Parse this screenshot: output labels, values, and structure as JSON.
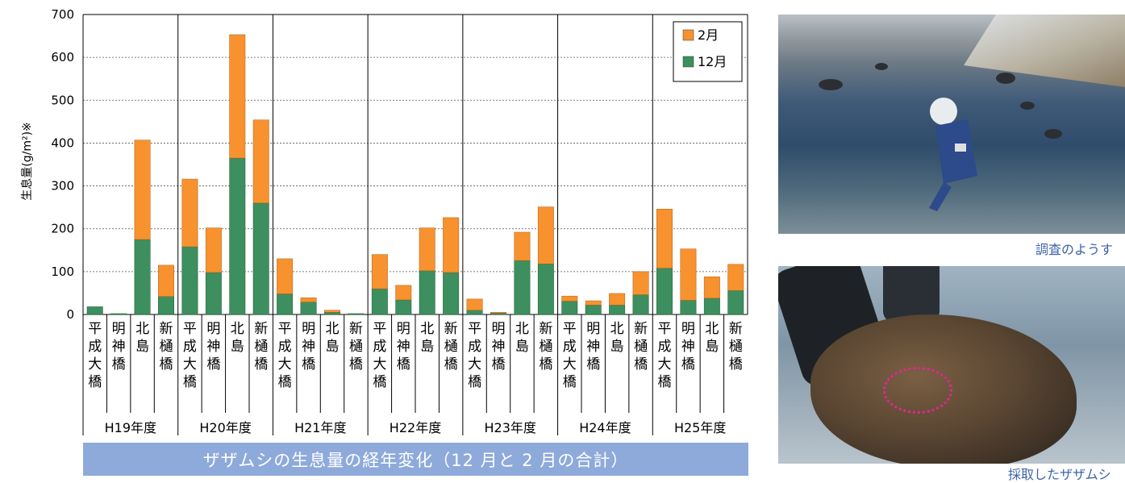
{
  "chart_data": {
    "type": "bar",
    "stacked": true,
    "ylabel": "生息量(g/m²)※",
    "ylim": [
      0,
      700
    ],
    "yticks": [
      0,
      100,
      200,
      300,
      400,
      500,
      600,
      700
    ],
    "grid": "dashed horizontal",
    "legend_position": "top-right",
    "site_labels": [
      "平成大橋",
      "明神橋",
      "北島",
      "新樋橋"
    ],
    "groups": [
      "H19年度",
      "H20年度",
      "H21年度",
      "H22年度",
      "H23年度",
      "H24年度",
      "H25年度"
    ],
    "categories": [
      "H19年度 平成大橋",
      "H19年度 明神橋",
      "H19年度 北島",
      "H19年度 新樋橋",
      "H20年度 平成大橋",
      "H20年度 明神橋",
      "H20年度 北島",
      "H20年度 新樋橋",
      "H21年度 平成大橋",
      "H21年度 明神橋",
      "H21年度 北島",
      "H21年度 新樋橋",
      "H22年度 平成大橋",
      "H22年度 明神橋",
      "H22年度 北島",
      "H22年度 新樋橋",
      "H23年度 平成大橋",
      "H23年度 明神橋",
      "H23年度 北島",
      "H23年度 新樋橋",
      "H24年度 平成大橋",
      "H24年度 明神橋",
      "H24年度 北島",
      "H24年度 新樋橋",
      "H25年度 平成大橋",
      "H25年度 明神橋",
      "H25年度 北島",
      "H25年度 新樋橋"
    ],
    "series": [
      {
        "name": "12月",
        "color": "#3d8f5f",
        "values": [
          18,
          2,
          175,
          42,
          158,
          98,
          365,
          260,
          48,
          29,
          5,
          2,
          60,
          34,
          102,
          98,
          10,
          3,
          126,
          118,
          31,
          22,
          22,
          46,
          108,
          33,
          38,
          56
        ]
      },
      {
        "name": "2月",
        "color": "#f7922e",
        "values": [
          0,
          0,
          232,
          73,
          158,
          104,
          288,
          194,
          82,
          10,
          5,
          0,
          80,
          34,
          100,
          128,
          26,
          2,
          66,
          133,
          12,
          10,
          27,
          54,
          138,
          120,
          50,
          61
        ]
      }
    ]
  },
  "caption": "ザザムシの生息量の経年変化（12 月と 2 月の合計）",
  "photos": [
    {
      "caption": "調査のようす"
    },
    {
      "caption": "採取したザザムシ"
    }
  ]
}
